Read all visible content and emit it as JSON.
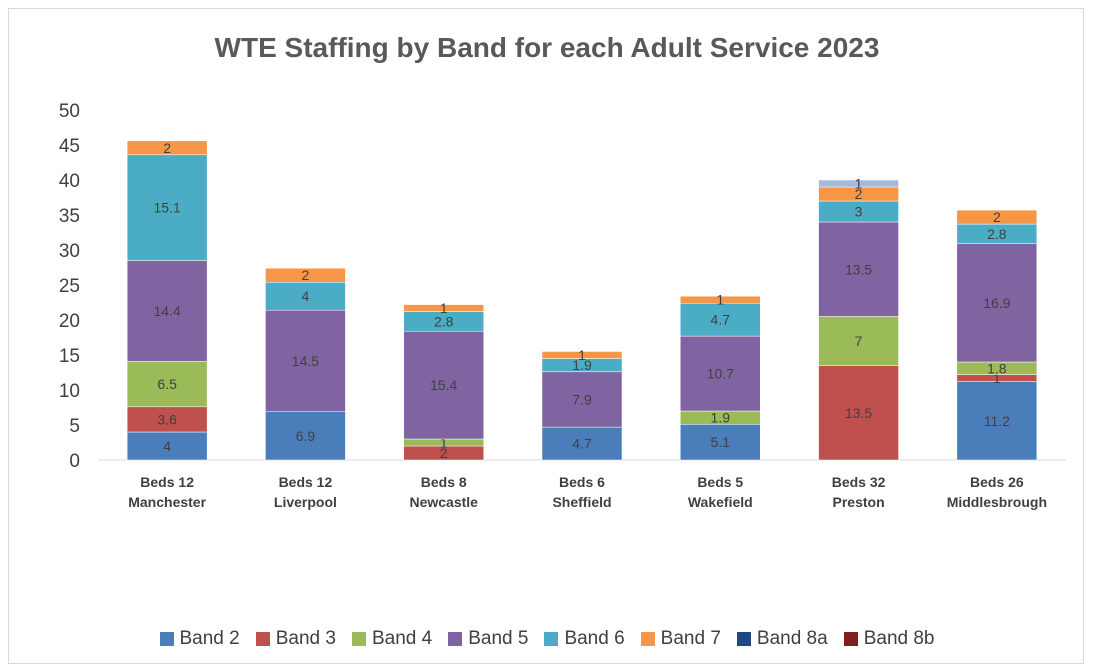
{
  "chart_data": {
    "type": "bar",
    "stacked": true,
    "title": "WTE Staffing by Band for each Adult Service 2023",
    "categories": [
      [
        "Beds 12",
        "Manchester"
      ],
      [
        "Beds 12",
        "Liverpool"
      ],
      [
        "Beds 8",
        "Newcastle"
      ],
      [
        "Beds 6",
        "Sheffield"
      ],
      [
        "Beds 5",
        "Wakefield"
      ],
      [
        "Beds 32",
        "Preston"
      ],
      [
        "Beds 26",
        "Middlesbrough"
      ]
    ],
    "ylim": [
      0,
      50
    ],
    "yticks": [
      0,
      5,
      10,
      15,
      20,
      25,
      30,
      35,
      40,
      45,
      50
    ],
    "grid": false,
    "legend_position": "bottom",
    "series": [
      {
        "name": "Band 2",
        "color": "#4a7ebb",
        "values": [
          4,
          6.9,
          0,
          4.7,
          5.1,
          0,
          11.2
        ],
        "labels": [
          "4",
          "6.9",
          "",
          "4.7",
          "5.1",
          "",
          "11.2"
        ]
      },
      {
        "name": "Band 3",
        "color": "#c0504d",
        "values": [
          3.6,
          0,
          2,
          0,
          0,
          13.5,
          1
        ],
        "labels": [
          "3.6",
          "",
          "2",
          "",
          "",
          "13.5",
          "1"
        ]
      },
      {
        "name": "Band 4",
        "color": "#9bbb59",
        "values": [
          6.5,
          0,
          1,
          0,
          1.9,
          7,
          1.8
        ],
        "labels": [
          "6.5",
          "",
          "1",
          "",
          "1.9",
          "7",
          "1.8"
        ]
      },
      {
        "name": "Band 5",
        "color": "#8064a2",
        "values": [
          14.4,
          14.5,
          15.4,
          7.9,
          10.7,
          13.5,
          16.9
        ],
        "labels": [
          "14.4",
          "14.5",
          "15.4",
          "7.9",
          "10.7",
          "13.5",
          "16.9"
        ]
      },
      {
        "name": "Band 6",
        "color": "#4bacc6",
        "values": [
          15.1,
          4,
          2.8,
          1.9,
          4.7,
          3,
          2.8
        ],
        "labels": [
          "15.1",
          "4",
          "2.8",
          "1.9",
          "4.7",
          "3",
          "2.8"
        ]
      },
      {
        "name": "Band 7",
        "color": "#f79646",
        "values": [
          2,
          2,
          1,
          1,
          1,
          2,
          2
        ],
        "labels": [
          "2",
          "2",
          "1",
          "1",
          "1",
          "2",
          "2"
        ]
      },
      {
        "name": "Band 8a",
        "color": "#1f497d",
        "values": [
          0,
          0,
          0,
          0,
          0,
          0,
          0
        ],
        "labels": [
          "",
          "",
          "",
          "",
          "",
          "",
          ""
        ]
      },
      {
        "name": "Band 8b",
        "color": "#7f1f1f",
        "values": [
          0,
          0,
          0,
          0,
          0,
          0,
          0
        ],
        "labels": [
          "",
          "",
          "",
          "",
          "",
          "",
          ""
        ]
      },
      {
        "name": "",
        "color": "#a6b9d9",
        "values": [
          0,
          0,
          0,
          0,
          0,
          1,
          0
        ],
        "labels": [
          "",
          "",
          "",
          "",
          "",
          "1",
          ""
        ]
      }
    ]
  }
}
